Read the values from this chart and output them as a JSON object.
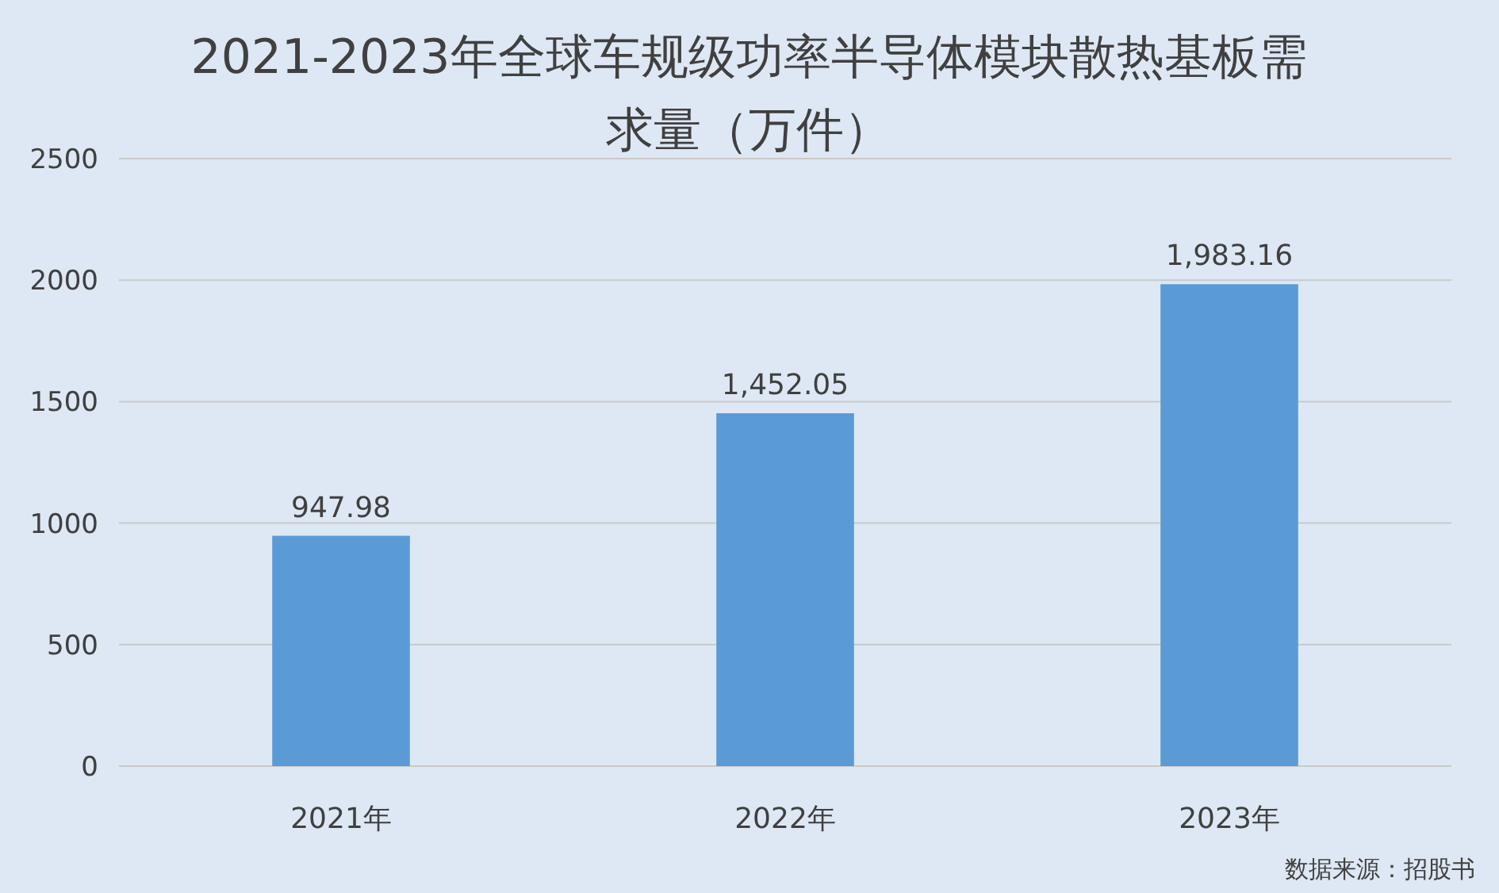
{
  "chart_data": {
    "type": "bar",
    "title": "2021-2023年全球车规级功率半导体模块散热基板需求量（万件）",
    "categories": [
      "2021年",
      "2022年",
      "2023年"
    ],
    "values": [
      947.98,
      1452.05,
      1983.16
    ],
    "value_labels": [
      "947.98",
      "1,452.05",
      "1,983.16"
    ],
    "color": "#5b9bd5",
    "ylim": [
      0,
      2500
    ],
    "yticks": [
      0,
      500,
      1000,
      1500,
      2000,
      2500
    ],
    "grid": "y",
    "annotations": [
      "数据来源：招股书"
    ]
  }
}
